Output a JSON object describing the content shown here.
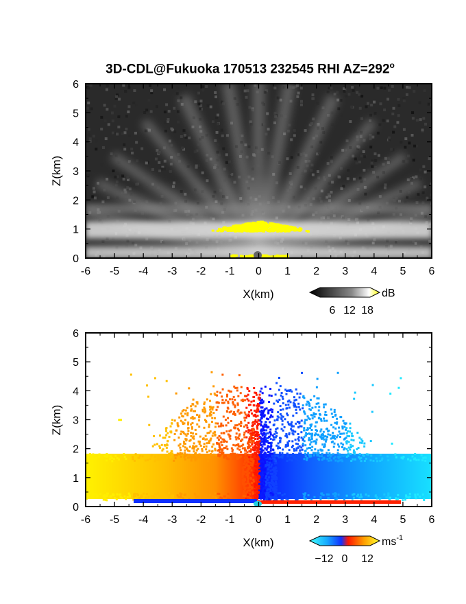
{
  "figure_title": "3D-CDL@Fukuoka 170513 232545 RHI AZ=292",
  "title_superscript": "o",
  "colors": {
    "yellow": "#ffff00",
    "red": "#ff1a00",
    "blue": "#1540ff",
    "cyan": "#16d8ff",
    "orange": "#ff9a00",
    "background_top": "#2a2a2a"
  },
  "chart_data": [
    {
      "type": "heatmap",
      "panel": "RHI reflectivity (SNR)",
      "xlabel": "X(km)",
      "ylabel": "Z(km)",
      "xlim": [
        -6,
        6
      ],
      "ylim": [
        0,
        6
      ],
      "x_ticks": [
        "-6",
        "-5",
        "-4",
        "-3",
        "-2",
        "-1",
        "0",
        "1",
        "2",
        "3",
        "4",
        "5",
        "6"
      ],
      "y_ticks": [
        "0",
        "1",
        "2",
        "3",
        "4",
        "5",
        "6"
      ],
      "colorbar": {
        "unit": "dB",
        "ticks": [
          "6",
          "12",
          "18"
        ],
        "range": [
          0,
          21
        ]
      },
      "features": {
        "bright_layer_z_km": [
          0.7,
          1.0
        ],
        "yellow_core": {
          "x_km": [
            -2.0,
            2.0
          ],
          "z_km": [
            0.8,
            1.3
          ]
        },
        "surface_band_z_km": [
          0.0,
          0.15
        ]
      }
    },
    {
      "type": "heatmap",
      "panel": "RHI radial velocity",
      "xlabel": "X(km)",
      "ylabel": "Z(km)",
      "xlim": [
        -6,
        6
      ],
      "ylim": [
        0,
        6
      ],
      "x_ticks": [
        "-6",
        "-5",
        "-4",
        "-3",
        "-2",
        "-1",
        "0",
        "1",
        "2",
        "3",
        "4",
        "5",
        "6"
      ],
      "y_ticks": [
        "0",
        "1",
        "2",
        "3",
        "4",
        "5",
        "6"
      ],
      "colorbar": {
        "unit": "ms",
        "unit_exponent": "-1",
        "ticks": [
          "−12",
          "0",
          "12"
        ],
        "range": [
          -15,
          15
        ]
      },
      "features": {
        "layer_top_z_km": 1.8,
        "layer_bottom_z_km": 0.2,
        "max_echo_height_z_km": 4.7,
        "left_side_sign": "positive",
        "right_side_sign": "negative"
      }
    }
  ]
}
